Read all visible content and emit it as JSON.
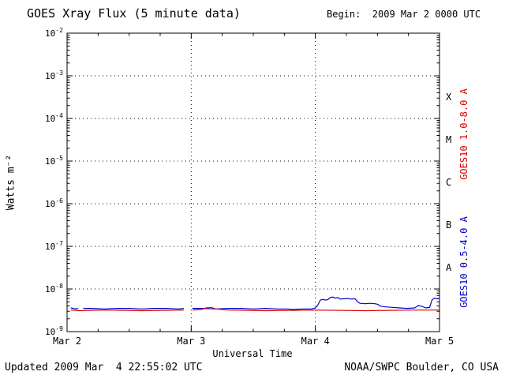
{
  "title": "GOES Xray Flux (5 minute data)",
  "begin_label": "Begin:  2009 Mar 2 0000 UTC",
  "footer": {
    "updated": "Updated 2009 Mar  4 22:55:02 UTC",
    "source": "NOAA/SWPC Boulder, CO USA"
  },
  "axes": {
    "ylabel": "Watts m⁻²",
    "xlabel": "Universal Time",
    "x_ticks": [
      "Mar 2",
      "Mar 3",
      "Mar 4",
      "Mar 5"
    ],
    "x_tick_positions": [
      0,
      1,
      2,
      3
    ],
    "y_exponents": [
      -2,
      -3,
      -4,
      -5,
      -6,
      -7,
      -8,
      -9
    ]
  },
  "right_labels": {
    "classes": [
      "X",
      "M",
      "C",
      "B",
      "A"
    ],
    "class_exponents": [
      -3.5,
      -4.5,
      -5.5,
      -6.5,
      -7.5
    ],
    "red_label": "GOES10 1.0-8.0 A",
    "blue_label": "GOES10 0.5-4.0 A"
  },
  "colors": {
    "red": "#dd0000",
    "blue": "#0000cd",
    "axis": "#000000"
  },
  "chart_data": {
    "type": "line",
    "title": "GOES Xray Flux (5 minute data)",
    "xlabel": "Universal Time",
    "ylabel": "Watts m⁻²",
    "x_unit": "days since 2009 Mar 2 0000 UTC",
    "xlim": [
      0,
      3
    ],
    "ylog": true,
    "ylim": [
      1e-09,
      0.01
    ],
    "grid": "dotted at each decade and each day",
    "legend_position": "right, rotated",
    "series": [
      {
        "name": "GOES10 0.5-4.0 A",
        "color": "#0000cd",
        "points": [
          [
            0.03,
            3.6e-09
          ],
          [
            0.05,
            3.5e-09
          ],
          [
            0.07,
            3.4e-09
          ],
          [
            0.09,
            3.5e-09
          ],
          null,
          [
            0.13,
            3.5e-09
          ],
          [
            0.2,
            3.5e-09
          ],
          [
            0.3,
            3.4e-09
          ],
          [
            0.4,
            3.5e-09
          ],
          [
            0.5,
            3.5e-09
          ],
          [
            0.6,
            3.4e-09
          ],
          [
            0.7,
            3.5e-09
          ],
          [
            0.8,
            3.5e-09
          ],
          [
            0.9,
            3.4e-09
          ],
          [
            0.94,
            3.5e-09
          ],
          null,
          [
            1.01,
            3.5e-09
          ],
          [
            1.1,
            3.5e-09
          ],
          [
            1.2,
            3.4e-09
          ],
          [
            1.3,
            3.5e-09
          ],
          [
            1.4,
            3.5e-09
          ],
          [
            1.5,
            3.4e-09
          ],
          [
            1.6,
            3.5e-09
          ],
          [
            1.7,
            3.4e-09
          ],
          [
            1.78,
            3.4e-09
          ],
          [
            1.82,
            3.3e-09
          ],
          [
            1.9,
            3.4e-09
          ],
          [
            1.97,
            3.4e-09
          ],
          [
            2.0,
            3.6e-09
          ],
          [
            2.02,
            4.2e-09
          ],
          [
            2.04,
            5.5e-09
          ],
          [
            2.06,
            5.7e-09
          ],
          [
            2.08,
            5.5e-09
          ],
          [
            2.1,
            5.6e-09
          ],
          [
            2.12,
            6.3e-09
          ],
          [
            2.14,
            6.5e-09
          ],
          [
            2.16,
            6.1e-09
          ],
          [
            2.18,
            6.3e-09
          ],
          [
            2.2,
            5.8e-09
          ],
          [
            2.23,
            5.9e-09
          ],
          [
            2.26,
            6e-09
          ],
          [
            2.29,
            5.8e-09
          ],
          [
            2.32,
            5.9e-09
          ],
          [
            2.34,
            5e-09
          ],
          [
            2.36,
            4.6e-09
          ],
          [
            2.4,
            4.5e-09
          ],
          [
            2.44,
            4.6e-09
          ],
          [
            2.48,
            4.5e-09
          ],
          [
            2.5,
            4.4e-09
          ],
          [
            2.53,
            3.9e-09
          ],
          [
            2.57,
            3.8e-09
          ],
          [
            2.62,
            3.7e-09
          ],
          [
            2.68,
            3.6e-09
          ],
          [
            2.74,
            3.5e-09
          ],
          [
            2.8,
            3.6e-09
          ],
          [
            2.83,
            4.1e-09
          ],
          [
            2.86,
            3.9e-09
          ],
          [
            2.89,
            3.6e-09
          ],
          [
            2.92,
            3.7e-09
          ],
          [
            2.94,
            5.6e-09
          ],
          [
            2.96,
            6.1e-09
          ],
          [
            2.98,
            5.9e-09
          ],
          [
            3.0,
            6e-09
          ]
        ]
      },
      {
        "name": "GOES10 1.0-8.0 A",
        "color": "#dd0000",
        "points": [
          [
            0.03,
            3.2e-09
          ],
          [
            0.1,
            3.1e-09
          ],
          [
            0.3,
            3.2e-09
          ],
          [
            0.6,
            3.1e-09
          ],
          [
            0.94,
            3.2e-09
          ],
          null,
          [
            1.01,
            3.2e-09
          ],
          [
            1.08,
            3.3e-09
          ],
          [
            1.12,
            3.6e-09
          ],
          [
            1.16,
            3.7e-09
          ],
          [
            1.2,
            3.4e-09
          ],
          [
            1.3,
            3.2e-09
          ],
          [
            1.6,
            3.1e-09
          ],
          [
            2.0,
            3.2e-09
          ],
          [
            2.4,
            3.1e-09
          ],
          [
            2.8,
            3.2e-09
          ],
          [
            3.0,
            3.2e-09
          ]
        ]
      }
    ]
  }
}
